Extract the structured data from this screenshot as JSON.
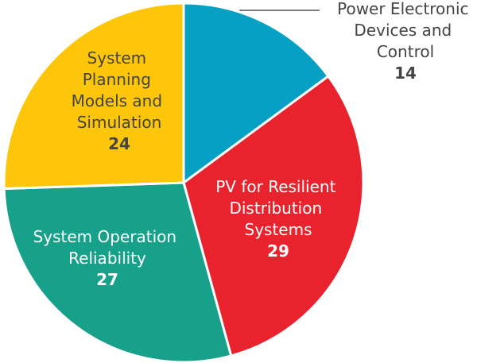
{
  "chart_data": {
    "type": "pie",
    "categories": [
      "Power Electronic Devices and Control",
      "PV for Resilient Distribution Systems",
      "System Operation Reliability",
      "System Planning Models and Simulation"
    ],
    "values": [
      14,
      29,
      27,
      24
    ],
    "colors": [
      "#05a0c4",
      "#e8232d",
      "#17a08a",
      "#fdc60a"
    ]
  }
}
